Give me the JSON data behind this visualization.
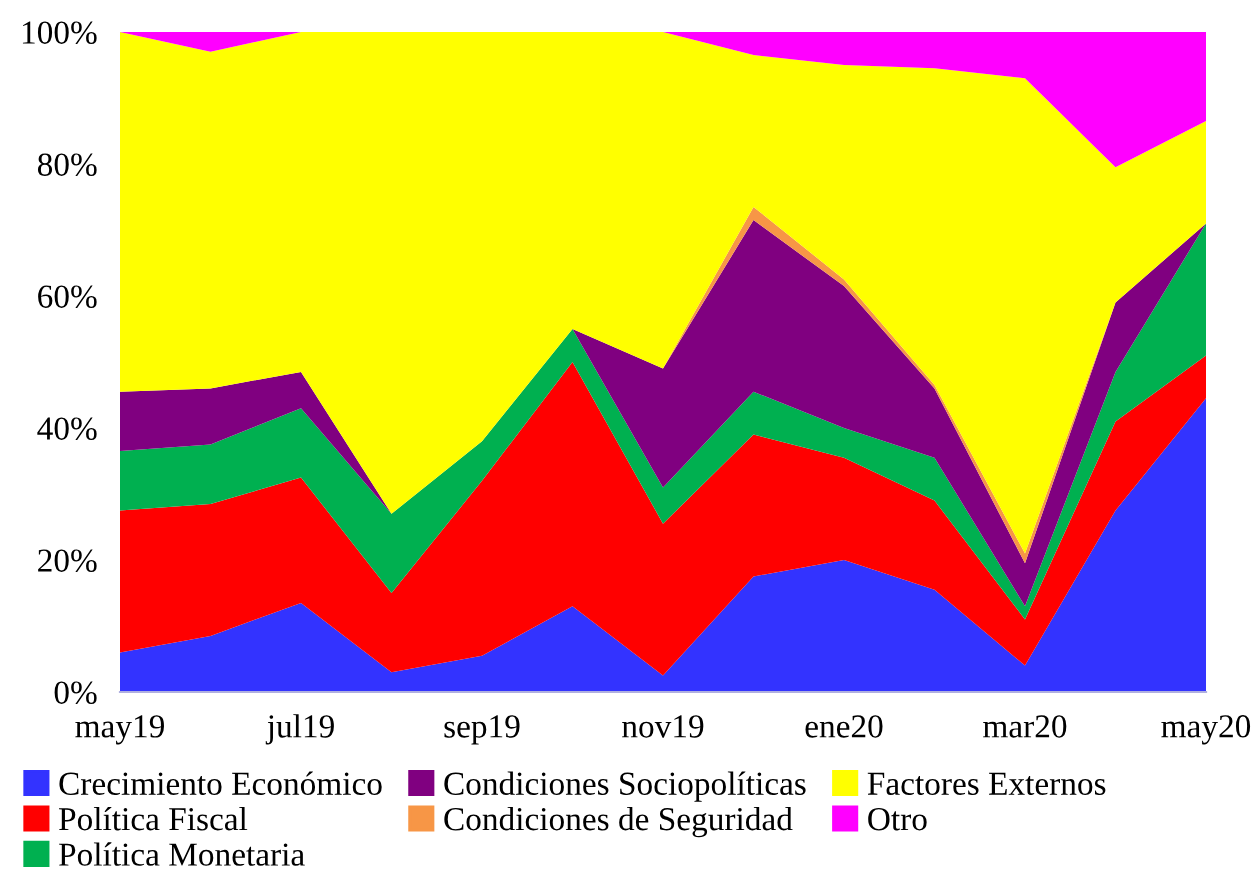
{
  "chart_data": {
    "type": "area",
    "stacked": true,
    "categories": [
      "may19",
      null,
      "jul19",
      null,
      "sep19",
      null,
      "nov19",
      null,
      "ene20",
      null,
      "mar20",
      null,
      "may20"
    ],
    "series": [
      {
        "name": "Crecimiento Económico",
        "color": "#3333ff",
        "values": [
          6,
          8.5,
          13.5,
          3,
          5.5,
          13,
          2.5,
          17.5,
          20,
          15.5,
          4,
          27.5,
          44.5
        ]
      },
      {
        "name": "Política Fiscal",
        "color": "#ff0000",
        "values": [
          21.5,
          20,
          19,
          12,
          26.5,
          37,
          23,
          21.5,
          15.5,
          13.5,
          7,
          13.5,
          6.5
        ]
      },
      {
        "name": "Política Monetaria",
        "color": "#00b050",
        "values": [
          9,
          9,
          10.5,
          12,
          6,
          5,
          5.5,
          6.5,
          4.5,
          6.5,
          2,
          7.5,
          20
        ]
      },
      {
        "name": "Condiciones Sociopolíticas",
        "color": "#800080",
        "values": [
          9,
          8.5,
          5.5,
          0,
          0,
          0,
          18,
          26,
          21.5,
          10.5,
          6.5,
          10.5,
          0
        ]
      },
      {
        "name": "Condiciones de Seguridad",
        "color": "#f79646",
        "values": [
          0,
          0,
          0,
          0,
          0,
          0,
          0,
          2,
          1,
          0.5,
          1.5,
          0,
          0
        ]
      },
      {
        "name": "Factores Externos",
        "color": "#ffff00",
        "values": [
          54.5,
          51,
          51.5,
          73,
          62,
          45,
          51,
          23,
          32.5,
          48,
          72,
          20.5,
          15.5
        ]
      },
      {
        "name": "Otro",
        "color": "#ff00ff",
        "values": [
          0,
          3,
          0,
          0,
          0,
          0,
          0,
          3.5,
          5,
          5.5,
          7,
          20.5,
          13.5
        ]
      }
    ],
    "ylim": [
      0,
      100
    ],
    "yticks": [
      {
        "value": 0,
        "label": "0%"
      },
      {
        "value": 20,
        "label": "20%"
      },
      {
        "value": 40,
        "label": "40%"
      },
      {
        "value": 60,
        "label": "60%"
      },
      {
        "value": 80,
        "label": "80%"
      },
      {
        "value": 100,
        "label": "100%"
      }
    ],
    "grid": false,
    "legend": "bottom"
  }
}
